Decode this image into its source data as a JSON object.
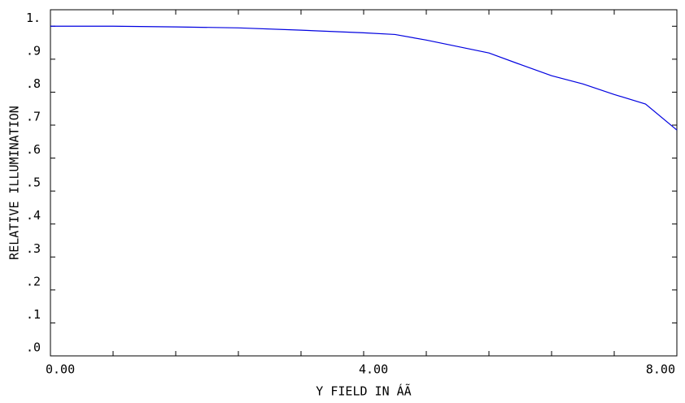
{
  "chart_data": {
    "type": "line",
    "x_label": "Y FIELD IN   ÁÃ",
    "y_label": "RELATIVE ILLUMINATION",
    "x": [
      0,
      0.8,
      1.6,
      2.4,
      3.2,
      4.0,
      4.4,
      4.8,
      5.6,
      6.0,
      6.4,
      6.8,
      7.2,
      7.6,
      8.0
    ],
    "series": [
      {
        "color": "#0000e0",
        "values": [
          1.0,
          1.0,
          0.998,
          0.995,
          0.988,
          0.98,
          0.975,
          0.958,
          0.919,
          0.884,
          0.85,
          0.825,
          0.793,
          0.764,
          0.685
        ]
      }
    ],
    "xlim": [
      0,
      8
    ],
    "ylim": [
      0,
      1.05
    ],
    "xticks": [
      {
        "value": 0,
        "label": "0.00"
      },
      {
        "value": 4,
        "label": "4.00"
      },
      {
        "value": 8,
        "label": "8.00"
      }
    ],
    "minor_xticks": [
      0,
      0.8,
      1.6,
      2.4,
      3.2,
      4.0,
      4.8,
      5.6,
      6.4,
      7.2,
      8.0
    ],
    "yticks": [
      {
        "value": 0,
        "label": ".0"
      },
      {
        "value": 0.1,
        "label": ".1"
      },
      {
        "value": 0.2,
        "label": ".2"
      },
      {
        "value": 0.3,
        "label": ".3"
      },
      {
        "value": 0.4,
        "label": ".4"
      },
      {
        "value": 0.5,
        "label": ".5"
      },
      {
        "value": 0.6,
        "label": ".6"
      },
      {
        "value": 0.7,
        "label": ".7"
      },
      {
        "value": 0.8,
        "label": ".8"
      },
      {
        "value": 0.9,
        "label": ".9"
      },
      {
        "value": 1.0,
        "label": "1."
      }
    ],
    "grid": false
  }
}
